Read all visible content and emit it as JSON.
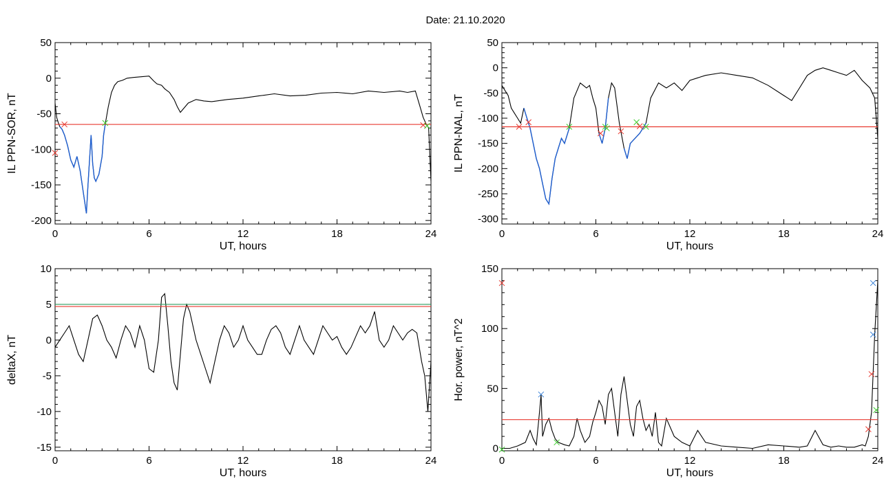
{
  "title": "Date:  21.10.2020",
  "colors": {
    "trace": "#000000",
    "threshold": "#e8382f",
    "threshold_alt": "#2e9e5e",
    "highlight": "#1f5fd0",
    "marker_red": "#e8382f",
    "marker_green": "#3ccf2e",
    "marker_blue": "#3b82d6"
  },
  "chart_data": [
    {
      "type": "line",
      "xlabel": "UT, hours",
      "ylabel": "IL PPN-SOR, nT",
      "xlim": [
        0,
        24
      ],
      "ylim": [
        -205,
        50
      ],
      "xticks": [
        0,
        6,
        12,
        18,
        24
      ],
      "yticks": [
        50,
        0,
        -50,
        -100,
        -150,
        -200
      ],
      "grid": false,
      "thresholds": [
        {
          "y": -65,
          "color": "threshold"
        }
      ],
      "highlight_ranges": [
        [
          0.3,
          3.2
        ]
      ],
      "series": [
        {
          "x": [
            0,
            0.1,
            0.2,
            0.3,
            0.45,
            0.6,
            0.8,
            1,
            1.2,
            1.4,
            1.6,
            1.8,
            2,
            2.1,
            2.3,
            2.4,
            2.5,
            2.6,
            2.8,
            3,
            3.1,
            3.2,
            3.4,
            3.6,
            3.8,
            4,
            4.3,
            4.6,
            5,
            5.5,
            6,
            6.3,
            6.5,
            6.8,
            7,
            7.3,
            7.6,
            7.8,
            8,
            8.5,
            9,
            9.5,
            10,
            11,
            12,
            13,
            14,
            15,
            16,
            17,
            18,
            19,
            20,
            21,
            22,
            22.5,
            23,
            23.3,
            23.5,
            23.7,
            23.85,
            24
          ],
          "y": [
            -35,
            -55,
            -62,
            -68,
            -72,
            -80,
            -95,
            -115,
            -125,
            -110,
            -130,
            -160,
            -190,
            -150,
            -80,
            -120,
            -140,
            -145,
            -135,
            -110,
            -80,
            -65,
            -40,
            -20,
            -10,
            -5,
            -3,
            0,
            1,
            2,
            3,
            -4,
            -8,
            -10,
            -15,
            -20,
            -30,
            -40,
            -48,
            -35,
            -30,
            -32,
            -33,
            -30,
            -28,
            -25,
            -22,
            -25,
            -24,
            -21,
            -20,
            -22,
            -18,
            -20,
            -18,
            -20,
            -18,
            -40,
            -55,
            -65,
            -70,
            -145
          ]
        }
      ],
      "markers": [
        {
          "x": 0.0,
          "y": -105,
          "color": "marker_red"
        },
        {
          "x": 0.6,
          "y": -65,
          "color": "marker_red"
        },
        {
          "x": 3.2,
          "y": -63,
          "color": "marker_green"
        },
        {
          "x": 23.5,
          "y": -66,
          "color": "marker_red"
        },
        {
          "x": 23.75,
          "y": -67,
          "color": "marker_green"
        }
      ]
    },
    {
      "type": "line",
      "xlabel": "UT, hours",
      "ylabel": "IL PPN-NAL, nT",
      "xlim": [
        0,
        24
      ],
      "ylim": [
        -310,
        50
      ],
      "xticks": [
        0,
        6,
        12,
        18,
        24
      ],
      "yticks": [
        50,
        0,
        -50,
        -100,
        -150,
        -200,
        -250,
        -300
      ],
      "grid": false,
      "thresholds": [
        {
          "y": -117,
          "color": "threshold"
        }
      ],
      "highlight_ranges": [
        [
          1.3,
          4.3
        ],
        [
          6.2,
          6.9
        ],
        [
          7.6,
          9.2
        ]
      ],
      "series": [
        {
          "x": [
            0,
            0.2,
            0.4,
            0.6,
            0.8,
            1,
            1.2,
            1.4,
            1.6,
            1.8,
            2,
            2.2,
            2.4,
            2.6,
            2.8,
            3,
            3.2,
            3.4,
            3.6,
            3.8,
            4,
            4.3,
            4.6,
            4.8,
            5,
            5.2,
            5.4,
            5.6,
            5.8,
            6,
            6.2,
            6.4,
            6.6,
            6.8,
            7,
            7.2,
            7.5,
            7.8,
            8,
            8.2,
            8.5,
            8.8,
            9,
            9.2,
            9.5,
            10,
            10.5,
            11,
            11.5,
            12,
            12.5,
            13,
            14,
            15,
            16,
            17,
            18,
            18.5,
            19,
            19.5,
            20,
            20.5,
            21,
            21.5,
            22,
            22.5,
            23,
            23.5,
            23.8,
            24
          ],
          "y": [
            -35,
            -45,
            -55,
            -80,
            -90,
            -100,
            -110,
            -80,
            -100,
            -120,
            -150,
            -180,
            -200,
            -230,
            -260,
            -270,
            -220,
            -180,
            -160,
            -140,
            -150,
            -120,
            -60,
            -45,
            -30,
            -35,
            -40,
            -35,
            -60,
            -80,
            -130,
            -150,
            -120,
            -60,
            -30,
            -40,
            -110,
            -160,
            -180,
            -150,
            -140,
            -130,
            -120,
            -110,
            -60,
            -30,
            -40,
            -30,
            -45,
            -25,
            -20,
            -15,
            -10,
            -15,
            -20,
            -35,
            -55,
            -65,
            -40,
            -15,
            -5,
            0,
            -5,
            -10,
            -15,
            -5,
            -25,
            -40,
            -60,
            -140
          ]
        }
      ],
      "markers": [
        {
          "x": 1.1,
          "y": -117,
          "color": "marker_red"
        },
        {
          "x": 1.7,
          "y": -108,
          "color": "marker_red"
        },
        {
          "x": 4.3,
          "y": -117,
          "color": "marker_green"
        },
        {
          "x": 6.3,
          "y": -130,
          "color": "marker_red"
        },
        {
          "x": 6.6,
          "y": -117,
          "color": "marker_green"
        },
        {
          "x": 6.7,
          "y": -120,
          "color": "marker_green"
        },
        {
          "x": 7.6,
          "y": -126,
          "color": "marker_red"
        },
        {
          "x": 8.6,
          "y": -108,
          "color": "marker_green"
        },
        {
          "x": 8.8,
          "y": -116,
          "color": "marker_red"
        },
        {
          "x": 9.2,
          "y": -117,
          "color": "marker_green"
        }
      ]
    },
    {
      "type": "line",
      "xlabel": "UT, hours",
      "ylabel": "deltaX, nT",
      "xlim": [
        0,
        24
      ],
      "ylim": [
        -15.5,
        10
      ],
      "xticks": [
        0,
        6,
        12,
        18,
        24
      ],
      "yticks": [
        10,
        5,
        0,
        -5,
        -10,
        -15
      ],
      "grid": false,
      "thresholds": [
        {
          "y": 5.0,
          "color": "threshold_alt"
        },
        {
          "y": 4.7,
          "color": "threshold"
        }
      ],
      "highlight_ranges": [],
      "series": [
        {
          "x": [
            0,
            0.3,
            0.6,
            0.9,
            1.2,
            1.5,
            1.8,
            2.1,
            2.4,
            2.7,
            3,
            3.3,
            3.6,
            3.9,
            4.2,
            4.5,
            4.8,
            5.1,
            5.4,
            5.7,
            6,
            6.3,
            6.6,
            6.8,
            7,
            7.2,
            7.4,
            7.6,
            7.8,
            8,
            8.2,
            8.4,
            8.6,
            8.8,
            9,
            9.3,
            9.6,
            9.9,
            10.2,
            10.5,
            10.8,
            11.1,
            11.4,
            11.7,
            12,
            12.3,
            12.6,
            12.9,
            13.2,
            13.5,
            13.8,
            14.1,
            14.4,
            14.7,
            15,
            15.3,
            15.6,
            15.9,
            16.2,
            16.5,
            16.8,
            17.1,
            17.4,
            17.7,
            18,
            18.3,
            18.6,
            18.9,
            19.2,
            19.5,
            19.8,
            20.1,
            20.4,
            20.7,
            21,
            21.3,
            21.6,
            21.9,
            22.2,
            22.5,
            22.8,
            23.1,
            23.4,
            23.6,
            23.8,
            24
          ],
          "y": [
            -1,
            0,
            1,
            2,
            0,
            -2,
            -3,
            0,
            3,
            3.5,
            2,
            0,
            -1,
            -2.5,
            0,
            2,
            1,
            -1,
            2,
            0,
            -4,
            -4.5,
            0,
            6,
            6.5,
            2,
            -3,
            -6,
            -7,
            -2,
            3,
            5,
            4,
            2,
            0,
            -2,
            -4,
            -6,
            -3,
            0,
            2,
            1,
            -1,
            0,
            2,
            0,
            -1,
            -2,
            -2,
            0,
            1.5,
            2,
            1,
            -1,
            -2,
            0,
            2,
            0,
            -1,
            -2,
            0,
            2,
            1,
            0,
            0.5,
            -1,
            -2,
            -1,
            0.5,
            2,
            1,
            2,
            4,
            0,
            -1,
            0,
            2,
            1,
            0,
            1,
            1.5,
            1,
            -3,
            -5,
            -10,
            -3
          ]
        }
      ],
      "markers": []
    },
    {
      "type": "line",
      "xlabel": "UT, hours",
      "ylabel": "Hor. power, nT^2",
      "xlim": [
        0,
        24
      ],
      "ylim": [
        -2,
        150
      ],
      "xticks": [
        0,
        6,
        12,
        18,
        24
      ],
      "yticks": [
        150,
        100,
        50,
        0
      ],
      "grid": false,
      "thresholds": [
        {
          "y": 24,
          "color": "threshold"
        }
      ],
      "highlight_ranges": [],
      "series": [
        {
          "x": [
            0,
            0.5,
            1,
            1.5,
            1.8,
            2,
            2.2,
            2.4,
            2.5,
            2.6,
            2.8,
            3,
            3.2,
            3.4,
            3.6,
            4,
            4.3,
            4.6,
            4.8,
            5,
            5.3,
            5.6,
            5.8,
            6,
            6.2,
            6.4,
            6.6,
            6.8,
            7,
            7.2,
            7.4,
            7.6,
            7.8,
            8,
            8.2,
            8.4,
            8.6,
            8.8,
            9,
            9.2,
            9.4,
            9.6,
            9.8,
            10,
            10.2,
            10.5,
            11,
            11.5,
            12,
            12.5,
            13,
            14,
            15,
            16,
            17,
            18,
            19,
            19.5,
            20,
            20.5,
            21,
            21.5,
            22,
            22.5,
            23,
            23.2,
            23.4,
            23.6,
            23.8,
            24
          ],
          "y": [
            0,
            0,
            2,
            5,
            15,
            8,
            3,
            30,
            45,
            10,
            20,
            25,
            15,
            8,
            5,
            3,
            2,
            10,
            25,
            15,
            5,
            10,
            22,
            30,
            40,
            35,
            20,
            45,
            50,
            30,
            10,
            45,
            60,
            40,
            20,
            10,
            35,
            40,
            25,
            15,
            20,
            10,
            30,
            5,
            2,
            25,
            10,
            5,
            2,
            15,
            5,
            2,
            1,
            0,
            3,
            2,
            1,
            2,
            15,
            3,
            1,
            2,
            1,
            1,
            3,
            2,
            10,
            30,
            95,
            140
          ]
        }
      ],
      "markers": [
        {
          "x": 0.0,
          "y": 138,
          "color": "marker_red"
        },
        {
          "x": 0.0,
          "y": -1,
          "color": "marker_green"
        },
        {
          "x": 2.5,
          "y": 45,
          "color": "marker_blue"
        },
        {
          "x": 3.5,
          "y": 5,
          "color": "marker_green"
        },
        {
          "x": 23.4,
          "y": 16,
          "color": "marker_red"
        },
        {
          "x": 23.6,
          "y": 62,
          "color": "marker_red"
        },
        {
          "x": 23.7,
          "y": 95,
          "color": "marker_blue"
        },
        {
          "x": 23.7,
          "y": 138,
          "color": "marker_blue"
        },
        {
          "x": 23.9,
          "y": 32,
          "color": "marker_green"
        }
      ]
    }
  ]
}
